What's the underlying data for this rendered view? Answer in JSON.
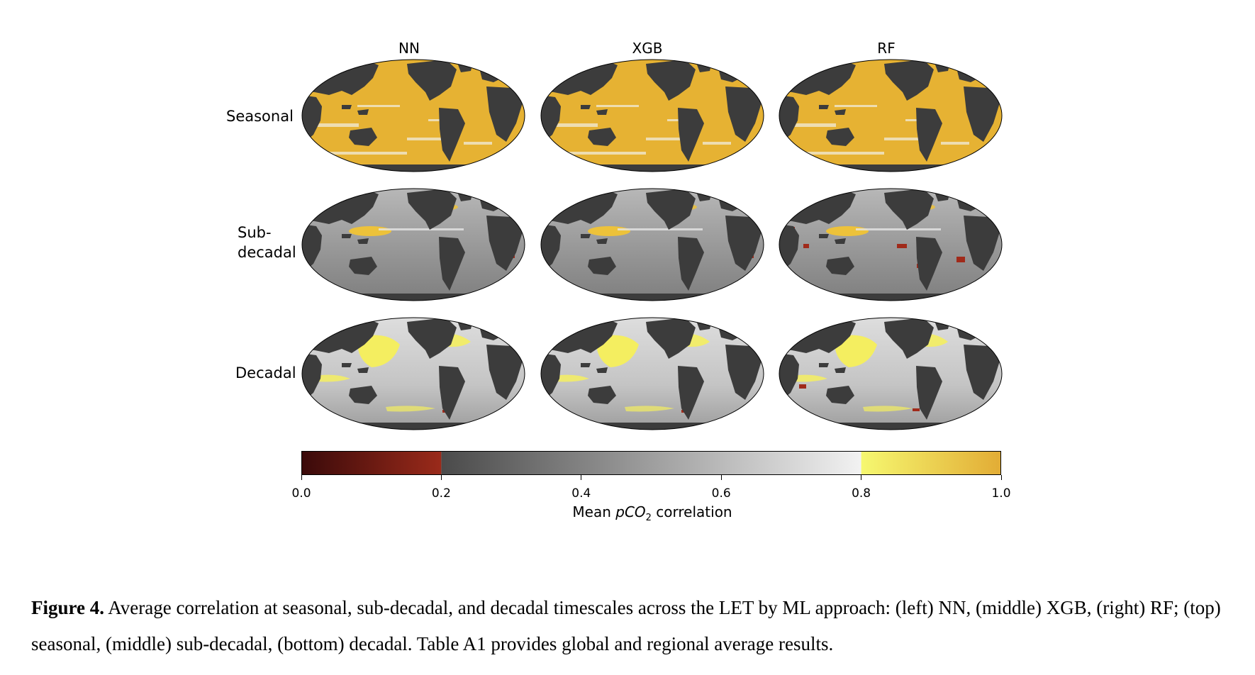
{
  "figure": {
    "columns": [
      "NN",
      "XGB",
      "RF"
    ],
    "rows": [
      {
        "lines": [
          "Seasonal"
        ]
      },
      {
        "lines": [
          "Sub-",
          "decadal"
        ]
      },
      {
        "lines": [
          "Decadal"
        ]
      }
    ]
  },
  "colorbar": {
    "ticks": [
      "0.0",
      "0.2",
      "0.4",
      "0.6",
      "0.8",
      "1.0"
    ],
    "tick_values": [
      0.0,
      0.2,
      0.4,
      0.6,
      0.8,
      1.0
    ],
    "label_prefix": "Mean ",
    "label_italic": "pCO",
    "label_sub": "2",
    "label_suffix": " correlation",
    "colors": {
      "low_start": "#3a0a0a",
      "low_end": "#9a2a1a",
      "mid_start": "#4a4a4a",
      "mid_end": "#f2f2f2",
      "high_start": "#f6f870",
      "high_end": "#e2ac35"
    }
  },
  "caption": {
    "label": "Figure 4.",
    "text": " Average correlation at seasonal, sub-decadal, and decadal timescales across the LET by ML approach: (left) NN, (middle) XGB, (right) RF; (top) seasonal, (middle) sub-decadal, (bottom) decadal. Table A1 provides global and regional average results."
  },
  "colors": {
    "land": "#3c3c3c",
    "ocean_gold": "#e6b233",
    "ocean_grey": "#9a9a9a",
    "low_red": "#a02a1a"
  }
}
